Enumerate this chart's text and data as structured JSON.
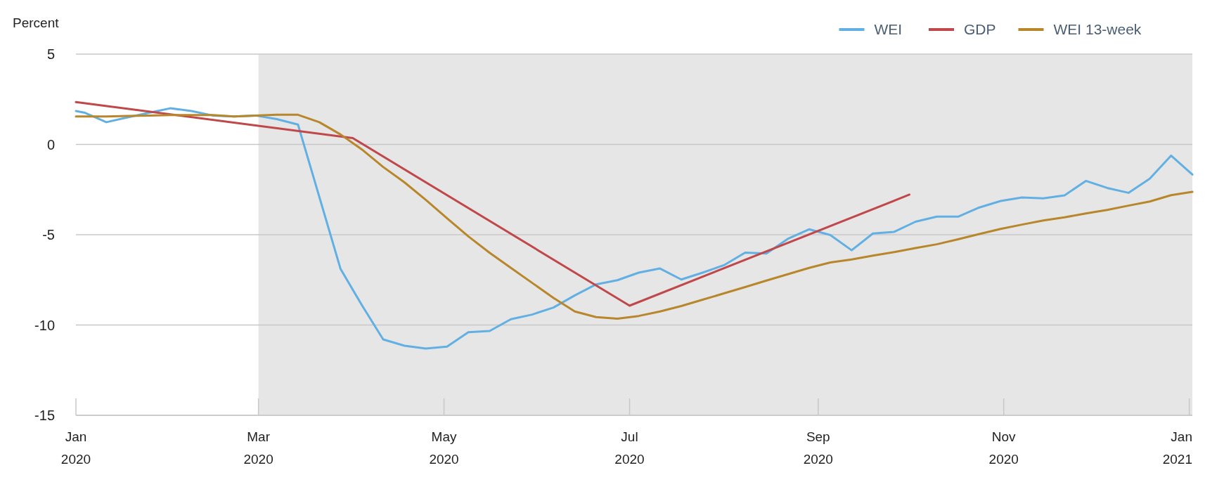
{
  "chart_data": {
    "type": "line",
    "ylabel": "Percent",
    "xlim": [
      "2020-01-01",
      "2021-01-02"
    ],
    "xticks": [
      {
        "value": "2020-01-01",
        "label": "Jan 2020"
      },
      {
        "value": "2020-03-01",
        "label": "Mar 2020"
      },
      {
        "value": "2020-05-01",
        "label": "May 2020"
      },
      {
        "value": "2020-07-01",
        "label": "Jul 2020"
      },
      {
        "value": "2020-09-01",
        "label": "Sep 2020"
      },
      {
        "value": "2020-11-01",
        "label": "Nov 2020"
      },
      {
        "value": "2021-01-01",
        "label": "Jan 2021"
      }
    ],
    "ylim": [
      -15,
      5
    ],
    "yticks": [
      -15,
      -10,
      -5,
      0,
      5
    ],
    "grid": "y",
    "legend": "top right",
    "bands": [
      {
        "axis": "x",
        "from": "2020-03-01",
        "to": "2021-01-02",
        "color": "#e6e6e6"
      }
    ],
    "series": [
      {
        "name": "WEI",
        "color": "#62b0e3",
        "x": [
          "2020-01-01",
          "2020-01-04",
          "2020-01-11",
          "2020-01-18",
          "2020-01-25",
          "2020-02-01",
          "2020-02-08",
          "2020-02-15",
          "2020-02-22",
          "2020-02-29",
          "2020-03-07",
          "2020-03-14",
          "2020-03-21",
          "2020-03-28",
          "2020-04-04",
          "2020-04-11",
          "2020-04-18",
          "2020-04-25",
          "2020-05-02",
          "2020-05-09",
          "2020-05-16",
          "2020-05-23",
          "2020-05-30",
          "2020-06-06",
          "2020-06-13",
          "2020-06-20",
          "2020-06-27",
          "2020-07-04",
          "2020-07-11",
          "2020-07-18",
          "2020-07-25",
          "2020-08-01",
          "2020-08-08",
          "2020-08-15",
          "2020-08-22",
          "2020-08-29",
          "2020-09-05",
          "2020-09-12",
          "2020-09-19",
          "2020-09-26",
          "2020-10-03",
          "2020-10-10",
          "2020-10-17",
          "2020-10-24",
          "2020-10-31",
          "2020-11-07",
          "2020-11-14",
          "2020-11-21",
          "2020-11-28",
          "2020-12-05",
          "2020-12-12",
          "2020-12-19",
          "2020-12-26",
          "2021-01-02"
        ],
        "values": [
          1.85,
          1.75,
          1.23,
          1.5,
          1.75,
          2.0,
          1.85,
          1.6,
          1.55,
          1.6,
          1.4,
          1.1,
          -2.9,
          -6.9,
          -8.9,
          -10.8,
          -11.15,
          -11.3,
          -11.2,
          -10.4,
          -10.33,
          -9.68,
          -9.42,
          -9.03,
          -8.36,
          -7.75,
          -7.52,
          -7.1,
          -6.87,
          -7.48,
          -7.1,
          -6.69,
          -5.99,
          -6.04,
          -5.23,
          -4.7,
          -5.02,
          -5.86,
          -4.93,
          -4.84,
          -4.28,
          -4.0,
          -4.0,
          -3.49,
          -3.13,
          -2.94,
          -2.99,
          -2.82,
          -2.02,
          -2.41,
          -2.68,
          -1.9,
          -0.62,
          -1.67
        ]
      },
      {
        "name": "GDP",
        "color": "#c0474a",
        "x": [
          "2020-01-01",
          "2020-04-01",
          "2020-07-01",
          "2020-10-01"
        ],
        "values": [
          2.34,
          0.35,
          -8.93,
          -2.78
        ]
      },
      {
        "name": "WEI 13-week",
        "color": "#b8862b",
        "x": [
          "2020-01-01",
          "2020-01-04",
          "2020-01-11",
          "2020-01-18",
          "2020-01-25",
          "2020-02-01",
          "2020-02-08",
          "2020-02-15",
          "2020-02-22",
          "2020-02-29",
          "2020-03-07",
          "2020-03-14",
          "2020-03-21",
          "2020-03-28",
          "2020-04-04",
          "2020-04-11",
          "2020-04-18",
          "2020-04-25",
          "2020-05-02",
          "2020-05-09",
          "2020-05-16",
          "2020-05-23",
          "2020-05-30",
          "2020-06-06",
          "2020-06-13",
          "2020-06-20",
          "2020-06-27",
          "2020-07-04",
          "2020-07-11",
          "2020-07-18",
          "2020-07-25",
          "2020-08-01",
          "2020-08-08",
          "2020-08-15",
          "2020-08-22",
          "2020-08-29",
          "2020-09-05",
          "2020-09-12",
          "2020-09-19",
          "2020-09-26",
          "2020-10-03",
          "2020-10-10",
          "2020-10-17",
          "2020-10-24",
          "2020-10-31",
          "2020-11-07",
          "2020-11-14",
          "2020-11-21",
          "2020-11-28",
          "2020-12-05",
          "2020-12-12",
          "2020-12-19",
          "2020-12-26",
          "2021-01-02"
        ],
        "values": [
          1.55,
          1.55,
          1.55,
          1.58,
          1.6,
          1.62,
          1.62,
          1.62,
          1.55,
          1.6,
          1.64,
          1.64,
          1.23,
          0.55,
          -0.28,
          -1.25,
          -2.1,
          -3.07,
          -4.09,
          -5.09,
          -6.0,
          -6.84,
          -7.67,
          -8.5,
          -9.25,
          -9.56,
          -9.65,
          -9.5,
          -9.25,
          -8.95,
          -8.6,
          -8.25,
          -7.9,
          -7.54,
          -7.19,
          -6.84,
          -6.54,
          -6.37,
          -6.16,
          -5.96,
          -5.74,
          -5.53,
          -5.25,
          -4.96,
          -4.68,
          -4.44,
          -4.21,
          -4.04,
          -3.82,
          -3.63,
          -3.39,
          -3.16,
          -2.81,
          -2.63
        ]
      }
    ]
  }
}
